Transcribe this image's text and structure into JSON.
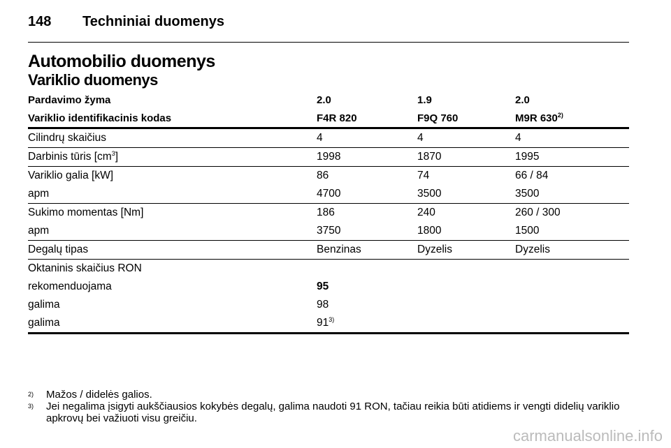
{
  "header": {
    "page_number": "148",
    "title": "Techniniai duomenys"
  },
  "section_title": "Automobilio duomenys",
  "subsection_title": "Variklio duomenys",
  "table": {
    "head": [
      [
        "Pardavimo žyma",
        "2.0",
        "1.9",
        "2.0"
      ],
      [
        "Variklio identifikacinis kodas",
        "F4R 820",
        "F9Q 760",
        {
          "text": "M9R 630",
          "sup": "2)"
        }
      ]
    ],
    "groups": [
      [
        [
          "Cilindrų skaičius",
          "4",
          "4",
          "4"
        ]
      ],
      [
        [
          {
            "text": "Darbinis tūris [cm",
            "sup": "3",
            "after": "]"
          },
          "1998",
          "1870",
          "1995"
        ]
      ],
      [
        [
          "Variklio galia [kW]",
          "86",
          "74",
          "66 / 84"
        ],
        [
          "apm",
          "4700",
          "3500",
          "3500"
        ]
      ],
      [
        [
          "Sukimo momentas [Nm]",
          "186",
          "240",
          "260 / 300"
        ],
        [
          "apm",
          "3750",
          "1800",
          "1500"
        ]
      ],
      [
        [
          "Degalų tipas",
          "Benzinas",
          "Dyzelis",
          "Dyzelis"
        ]
      ],
      [
        [
          "Oktaninis skaičius RON"
        ],
        [
          "rekomenduojama",
          {
            "text": "95",
            "bold": true
          }
        ],
        [
          "galima",
          "98"
        ],
        [
          "galima",
          {
            "text": "91",
            "sup": "3)"
          }
        ]
      ]
    ]
  },
  "footnotes": [
    {
      "mark": "2)",
      "text": "Mažos / didelės galios."
    },
    {
      "mark": "3)",
      "text": "Jei negalima įsigyti aukščiausios kokybės degalų, galima naudoti 91 RON, tačiau reikia būti atidiems ir vengti didelių variklio apkrovų bei važiuoti visu greičiu."
    }
  ],
  "watermark": "carmanualsonline.info"
}
